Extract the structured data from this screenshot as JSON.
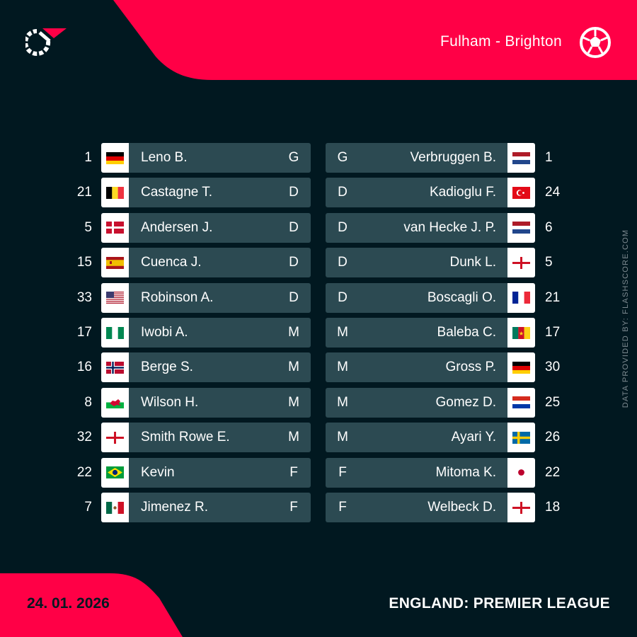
{
  "match": {
    "title": "Fulham - Brighton",
    "date": "24. 01. 2026",
    "league": "ENGLAND: PREMIER LEAGUE",
    "credit": "DATA PROVIDED BY: FLASHSCORE.COM"
  },
  "brand": {
    "logo_icon": "flashscore-logo-icon",
    "ball_icon": "football-icon",
    "accent_color": "#ff0046",
    "background_color": "#011820",
    "card_color": "#2c4a52"
  },
  "home": [
    {
      "number": "1",
      "flag": "germany",
      "name": "Leno B.",
      "position": "G"
    },
    {
      "number": "21",
      "flag": "belgium",
      "name": "Castagne T.",
      "position": "D"
    },
    {
      "number": "5",
      "flag": "denmark",
      "name": "Andersen J.",
      "position": "D"
    },
    {
      "number": "15",
      "flag": "spain",
      "name": "Cuenca J.",
      "position": "D"
    },
    {
      "number": "33",
      "flag": "usa",
      "name": "Robinson A.",
      "position": "D"
    },
    {
      "number": "17",
      "flag": "nigeria",
      "name": "Iwobi A.",
      "position": "M"
    },
    {
      "number": "16",
      "flag": "norway",
      "name": "Berge S.",
      "position": "M"
    },
    {
      "number": "8",
      "flag": "wales",
      "name": "Wilson H.",
      "position": "M"
    },
    {
      "number": "32",
      "flag": "england",
      "name": "Smith Rowe E.",
      "position": "M"
    },
    {
      "number": "22",
      "flag": "brazil",
      "name": "Kevin",
      "position": "F"
    },
    {
      "number": "7",
      "flag": "mexico",
      "name": "Jimenez R.",
      "position": "F"
    }
  ],
  "away": [
    {
      "number": "1",
      "flag": "netherlands",
      "name": "Verbruggen B.",
      "position": "G"
    },
    {
      "number": "24",
      "flag": "turkey",
      "name": "Kadioglu F.",
      "position": "D"
    },
    {
      "number": "6",
      "flag": "netherlands",
      "name": "van Hecke J. P.",
      "position": "D"
    },
    {
      "number": "5",
      "flag": "england",
      "name": "Dunk L.",
      "position": "D"
    },
    {
      "number": "21",
      "flag": "france",
      "name": "Boscagli O.",
      "position": "D"
    },
    {
      "number": "17",
      "flag": "cameroon",
      "name": "Baleba C.",
      "position": "M"
    },
    {
      "number": "30",
      "flag": "germany",
      "name": "Gross P.",
      "position": "M"
    },
    {
      "number": "25",
      "flag": "paraguay",
      "name": "Gomez D.",
      "position": "M"
    },
    {
      "number": "26",
      "flag": "sweden",
      "name": "Ayari Y.",
      "position": "M"
    },
    {
      "number": "22",
      "flag": "japan",
      "name": "Mitoma K.",
      "position": "F"
    },
    {
      "number": "18",
      "flag": "england",
      "name": "Welbeck D.",
      "position": "F"
    }
  ]
}
